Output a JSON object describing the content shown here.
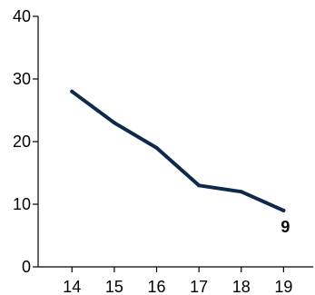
{
  "chart_data": {
    "type": "line",
    "x": [
      14,
      15,
      16,
      17,
      18,
      19
    ],
    "x_ticks": [
      "14",
      "15",
      "16",
      "17",
      "18",
      "19"
    ],
    "y_ticks": [
      "0",
      "10",
      "20",
      "30",
      "40"
    ],
    "ylim": [
      0,
      40
    ],
    "xlim": [
      13.2,
      19.7
    ],
    "series": [
      {
        "values": [
          28,
          23,
          19,
          13,
          12,
          9
        ],
        "color": "#0d2a4a"
      }
    ],
    "data_labels": [
      {
        "x": 19,
        "y": 9,
        "text": "9"
      }
    ],
    "grid": false
  }
}
